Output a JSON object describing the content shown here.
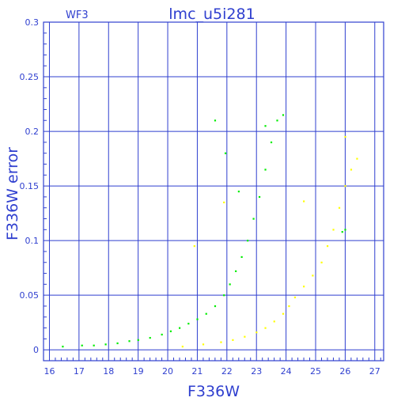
{
  "chart_data": {
    "type": "scatter",
    "title": "lmc_u5i281",
    "corner_label": "WF3",
    "xlabel": "F336W",
    "ylabel": "F336W error",
    "xlim": [
      15.8,
      27.3
    ],
    "ylim": [
      -0.01,
      0.3
    ],
    "xticks": [
      16,
      17,
      18,
      19,
      20,
      21,
      22,
      23,
      24,
      25,
      26,
      27
    ],
    "yticks": [
      0,
      0.05,
      0.1,
      0.15,
      0.2,
      0.25,
      0.3
    ],
    "ytick_labels": [
      "0",
      "0.05",
      "0.1",
      "0.15",
      "0.2",
      "0.25",
      "0.3"
    ],
    "grid": true,
    "series": [
      {
        "color": "#00ee00",
        "points": [
          [
            16.45,
            0.003
          ],
          [
            17.1,
            0.004
          ],
          [
            17.5,
            0.004
          ],
          [
            17.9,
            0.005
          ],
          [
            18.3,
            0.006
          ],
          [
            18.7,
            0.008
          ],
          [
            19.0,
            0.009
          ],
          [
            19.4,
            0.011
          ],
          [
            19.8,
            0.014
          ],
          [
            20.1,
            0.017
          ],
          [
            20.4,
            0.02
          ],
          [
            20.7,
            0.024
          ],
          [
            21.0,
            0.028
          ],
          [
            21.3,
            0.033
          ],
          [
            21.6,
            0.04
          ],
          [
            21.9,
            0.05
          ],
          [
            22.1,
            0.06
          ],
          [
            22.3,
            0.072
          ],
          [
            22.5,
            0.085
          ],
          [
            22.7,
            0.1
          ],
          [
            22.9,
            0.12
          ],
          [
            23.1,
            0.14
          ],
          [
            23.3,
            0.165
          ],
          [
            23.5,
            0.19
          ],
          [
            23.7,
            0.21
          ],
          [
            23.9,
            0.215
          ],
          [
            21.6,
            0.21
          ],
          [
            21.95,
            0.18
          ],
          [
            22.4,
            0.145
          ],
          [
            23.3,
            0.205
          ],
          [
            25.9,
            0.108
          ],
          [
            26.0,
            0.11
          ]
        ]
      },
      {
        "color": "#ffff00",
        "points": [
          [
            20.5,
            0.003
          ],
          [
            21.2,
            0.005
          ],
          [
            21.8,
            0.007
          ],
          [
            22.2,
            0.009
          ],
          [
            22.6,
            0.012
          ],
          [
            23.0,
            0.016
          ],
          [
            23.3,
            0.02
          ],
          [
            23.6,
            0.026
          ],
          [
            23.9,
            0.033
          ],
          [
            24.1,
            0.04
          ],
          [
            24.3,
            0.048
          ],
          [
            24.6,
            0.058
          ],
          [
            24.9,
            0.068
          ],
          [
            25.2,
            0.08
          ],
          [
            25.4,
            0.095
          ],
          [
            25.6,
            0.11
          ],
          [
            25.8,
            0.13
          ],
          [
            26.0,
            0.15
          ],
          [
            26.2,
            0.165
          ],
          [
            26.4,
            0.175
          ],
          [
            21.9,
            0.135
          ],
          [
            24.6,
            0.136
          ],
          [
            26.0,
            0.195
          ],
          [
            20.9,
            0.095
          ]
        ]
      }
    ]
  }
}
